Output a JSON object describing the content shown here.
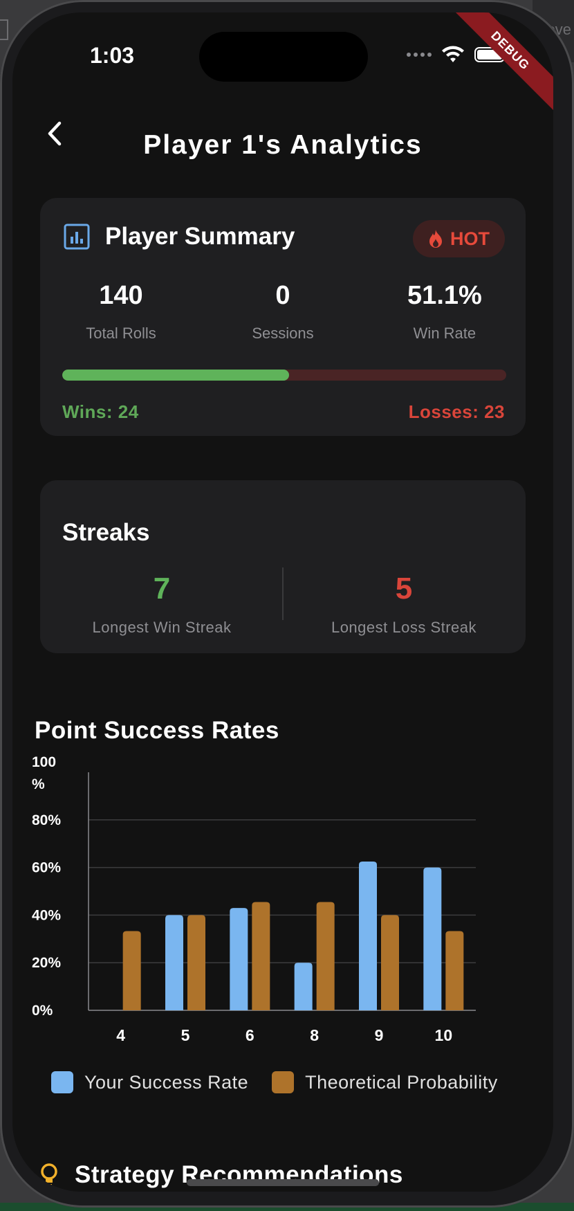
{
  "status_bar": {
    "time": "1:03"
  },
  "debug_label": "DEBUG",
  "background_text": "ove",
  "header": {
    "title": "Player 1's Analytics"
  },
  "summary": {
    "title": "Player Summary",
    "badge": "HOT",
    "stats": [
      {
        "value": "140",
        "label": "Total Rolls"
      },
      {
        "value": "0",
        "label": "Sessions"
      },
      {
        "value": "51.1%",
        "label": "Win Rate"
      }
    ],
    "win_fraction": 0.511,
    "wins_label": "Wins: 24",
    "losses_label": "Losses: 23"
  },
  "streaks": {
    "title": "Streaks",
    "longest_win": {
      "value": "7",
      "label": "Longest Win Streak"
    },
    "longest_loss": {
      "value": "5",
      "label": "Longest Loss Streak"
    }
  },
  "chart_section": {
    "title": "Point Success Rates"
  },
  "chart_data": {
    "type": "bar",
    "title": "Point Success Rates",
    "categories": [
      "4",
      "5",
      "6",
      "8",
      "9",
      "10"
    ],
    "series": [
      {
        "name": "Your Success Rate",
        "values": [
          0,
          40,
          43,
          20,
          62.5,
          60
        ],
        "color": "#7ab6f0"
      },
      {
        "name": "Theoretical Probability",
        "values": [
          33.3,
          40,
          45.5,
          45.5,
          40,
          33.3
        ],
        "color": "#ae732b"
      }
    ],
    "ylim": [
      0,
      100
    ],
    "yticks": [
      "0%",
      "20%",
      "40%",
      "60%",
      "80%",
      "100 %"
    ],
    "grid": true,
    "legend": "bottom"
  },
  "strategy": {
    "title": "Strategy Recommendations"
  },
  "colors": {
    "win_green": "#5fb35a",
    "loss_red": "#d9453a",
    "accent_blue": "#6aa8e8",
    "bulb_yellow": "#f2b12b"
  }
}
